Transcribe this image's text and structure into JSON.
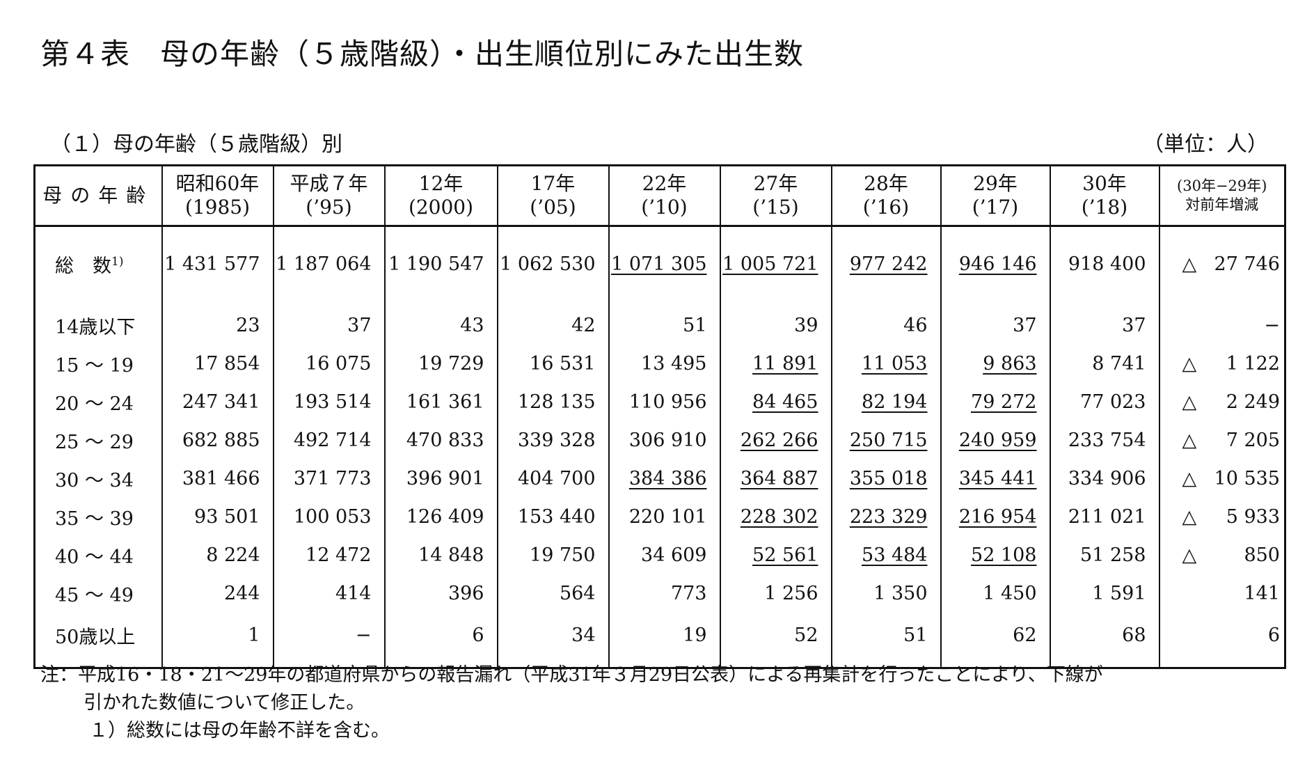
{
  "title": "第４表　母の年齢（５歳階級）・出生順位別にみた出生数",
  "subtitle": "（１）母の年齢（５歳階級）別",
  "unit": "（単位：人）",
  "table": {
    "age_header": "母の年齢",
    "years": [
      {
        "l1": "昭和60年",
        "l2": "(1985)"
      },
      {
        "l1": "平成７年",
        "l2": "(’95)"
      },
      {
        "l1": "12年",
        "l2": "(2000)"
      },
      {
        "l1": "17年",
        "l2": "(’05)"
      },
      {
        "l1": "22年",
        "l2": "(’10)"
      },
      {
        "l1": "27年",
        "l2": "(’15)"
      },
      {
        "l1": "28年",
        "l2": "(’16)"
      },
      {
        "l1": "29年",
        "l2": "(’17)"
      },
      {
        "l1": "30年",
        "l2": "(’18)"
      }
    ],
    "diff_header": {
      "l1": "(30年−29年)",
      "l2": "対前年増減"
    },
    "rows": [
      {
        "age": "総　数",
        "sup": "1)",
        "values": [
          "1 431 577",
          "1 187 064",
          "1 190 547",
          "1 062 530",
          "1 071 305",
          "1 005 721",
          "977 242",
          "946 146",
          "918 400"
        ],
        "underlined": [
          4,
          5,
          6,
          7
        ],
        "diff_sign": "△",
        "diff": "27 746"
      },
      {
        "age": "14歳以下",
        "values": [
          "23",
          "37",
          "43",
          "42",
          "51",
          "39",
          "46",
          "37",
          "37"
        ],
        "underlined": [],
        "diff_sign": "",
        "diff": "−"
      },
      {
        "age": "15 〜 19",
        "values": [
          "17 854",
          "16 075",
          "19 729",
          "16 531",
          "13 495",
          "11 891",
          "11 053",
          "9 863",
          "8 741"
        ],
        "underlined": [
          5,
          6,
          7
        ],
        "diff_sign": "△",
        "diff": "1 122"
      },
      {
        "age": "20 〜 24",
        "values": [
          "247 341",
          "193 514",
          "161 361",
          "128 135",
          "110 956",
          "84 465",
          "82 194",
          "79 272",
          "77 023"
        ],
        "underlined": [
          5,
          6,
          7
        ],
        "diff_sign": "△",
        "diff": "2 249"
      },
      {
        "age": "25 〜 29",
        "values": [
          "682 885",
          "492 714",
          "470 833",
          "339 328",
          "306 910",
          "262 266",
          "250 715",
          "240 959",
          "233 754"
        ],
        "underlined": [
          5,
          6,
          7
        ],
        "diff_sign": "△",
        "diff": "7 205"
      },
      {
        "age": "30 〜 34",
        "values": [
          "381 466",
          "371 773",
          "396 901",
          "404 700",
          "384 386",
          "364 887",
          "355 018",
          "345 441",
          "334 906"
        ],
        "underlined": [
          4,
          5,
          6,
          7
        ],
        "diff_sign": "△",
        "diff": "10 535"
      },
      {
        "age": "35 〜 39",
        "values": [
          "93 501",
          "100 053",
          "126 409",
          "153 440",
          "220 101",
          "228 302",
          "223 329",
          "216 954",
          "211 021"
        ],
        "underlined": [
          5,
          6,
          7
        ],
        "diff_sign": "△",
        "diff": "5 933"
      },
      {
        "age": "40 〜 44",
        "values": [
          "8 224",
          "12 472",
          "14 848",
          "19 750",
          "34 609",
          "52 561",
          "53 484",
          "52 108",
          "51 258"
        ],
        "underlined": [
          5,
          6,
          7
        ],
        "diff_sign": "△",
        "diff": "850"
      },
      {
        "age": "45 〜 49",
        "values": [
          "244",
          "414",
          "396",
          "564",
          "773",
          "1 256",
          "1 350",
          "1 450",
          "1 591"
        ],
        "underlined": [],
        "diff_sign": "",
        "diff": "141"
      },
      {
        "age": "50歳以上",
        "values": [
          "1",
          "−",
          "6",
          "34",
          "19",
          "52",
          "51",
          "62",
          "68"
        ],
        "underlined": [],
        "diff_sign": "",
        "diff": "6"
      }
    ]
  },
  "notes": {
    "line1": "注：平成16・18・21〜29年の都道府県からの報告漏れ（平成31年３月29日公表）による再集計を行ったことにより、下線が",
    "line2": "引かれた数値について修正した。",
    "line3": "１）総数には母の年齢不詳を含む。"
  }
}
